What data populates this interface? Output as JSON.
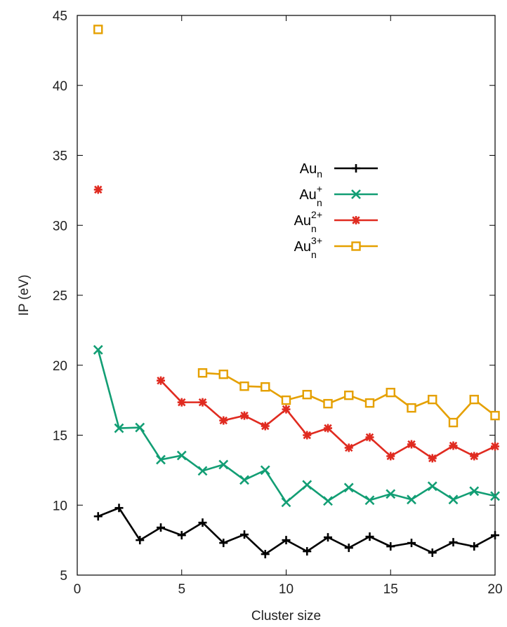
{
  "chart_data": {
    "type": "line",
    "title": "",
    "xlabel": "Cluster size",
    "ylabel": "IP (eV)",
    "xlim": [
      0,
      20
    ],
    "ylim": [
      5,
      45
    ],
    "xticks": [
      0,
      5,
      10,
      15,
      20
    ],
    "yticks": [
      5,
      10,
      15,
      20,
      25,
      30,
      35,
      40,
      45
    ],
    "grid": false,
    "legend_position": "center-right",
    "series": [
      {
        "label_base": "Au",
        "label_sub": "n",
        "label_sup": "",
        "color": "#000000",
        "marker": "plus",
        "x": [
          1,
          2,
          3,
          4,
          5,
          6,
          7,
          8,
          9,
          10,
          11,
          12,
          13,
          14,
          15,
          16,
          17,
          18,
          19,
          20
        ],
        "values": [
          9.2,
          9.8,
          7.5,
          8.4,
          7.85,
          8.75,
          7.3,
          7.9,
          6.5,
          7.5,
          6.7,
          7.7,
          6.95,
          7.75,
          7.05,
          7.3,
          6.6,
          7.35,
          7.05,
          7.85
        ]
      },
      {
        "label_base": "Au",
        "label_sub": "n",
        "label_sup": "+",
        "color": "#129e74",
        "marker": "x",
        "x": [
          1,
          2,
          3,
          4,
          5,
          6,
          7,
          8,
          9,
          10,
          11,
          12,
          13,
          14,
          15,
          16,
          17,
          18,
          19,
          20
        ],
        "values": [
          21.1,
          15.5,
          15.55,
          13.25,
          13.55,
          12.45,
          12.9,
          11.8,
          12.5,
          10.2,
          11.45,
          10.3,
          11.25,
          10.35,
          10.8,
          10.4,
          11.35,
          10.4,
          11.0,
          10.65
        ]
      },
      {
        "label_base": "Au",
        "label_sub": "n",
        "label_sup": "2+",
        "color": "#e02b20",
        "marker": "star",
        "x": [
          1,
          4,
          5,
          6,
          7,
          8,
          9,
          10,
          11,
          12,
          13,
          14,
          15,
          16,
          17,
          18,
          19,
          20
        ],
        "values": [
          32.55,
          18.9,
          17.35,
          17.35,
          16.05,
          16.4,
          15.65,
          16.85,
          15.0,
          15.5,
          14.1,
          14.85,
          13.5,
          14.35,
          13.35,
          14.25,
          13.5,
          14.2
        ],
        "line_breaks_after_index": [
          0
        ]
      },
      {
        "label_base": "Au",
        "label_sub": "n",
        "label_sup": "3+",
        "color": "#e5a000",
        "marker": "square",
        "x": [
          1,
          6,
          7,
          8,
          9,
          10,
          11,
          12,
          13,
          14,
          15,
          16,
          17,
          18,
          19,
          20
        ],
        "values": [
          44.0,
          19.45,
          19.35,
          18.5,
          18.45,
          17.5,
          17.9,
          17.25,
          17.85,
          17.3,
          18.05,
          16.95,
          17.55,
          15.9,
          17.55,
          16.4
        ],
        "line_breaks_after_index": [
          0
        ]
      }
    ]
  }
}
